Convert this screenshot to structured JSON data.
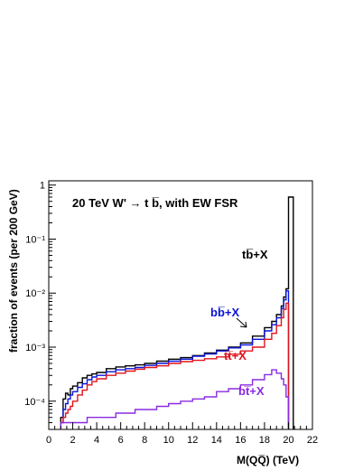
{
  "chart_data": {
    "type": "line",
    "title": "20 TeV W' → t b̅, with EW FSR",
    "xlabel": "M(QQ̅)  (TeV)",
    "ylabel": "fraction of events (per 200 GeV)",
    "xlim": [
      0,
      22
    ],
    "ylim": [
      3e-05,
      1.2
    ],
    "yscale": "log",
    "x_ticks": [
      "0",
      "2",
      "4",
      "6",
      "8",
      "10",
      "12",
      "14",
      "16",
      "18",
      "20",
      "22"
    ],
    "y_ticks": [
      "10⁻⁴",
      "10⁻³",
      "10⁻²",
      "10⁻¹",
      "1"
    ],
    "grid": false,
    "series": [
      {
        "name": "tb̅+X",
        "color": "#000000",
        "x": [
          1.0,
          1.2,
          1.4,
          1.6,
          1.8,
          2.0,
          2.4,
          2.8,
          3.2,
          3.6,
          4.0,
          4.8,
          5.6,
          6.4,
          7.2,
          8.0,
          9.0,
          10.0,
          11.0,
          12.0,
          13.0,
          14.0,
          15.0,
          16.0,
          17.0,
          18.0,
          18.6,
          19.0,
          19.4,
          19.6,
          19.8,
          20.0,
          20.2
        ],
        "y": [
          5e-05,
          0.00011,
          0.00014,
          0.00013,
          0.00017,
          0.00019,
          0.00022,
          0.00027,
          0.0003,
          0.00032,
          0.00034,
          0.0004,
          0.00043,
          0.00045,
          0.00047,
          0.0005,
          0.00055,
          0.0006,
          0.00064,
          0.0007,
          0.00078,
          0.00088,
          0.001,
          0.0012,
          0.0016,
          0.0023,
          0.003,
          0.004,
          0.0058,
          0.0085,
          0.012,
          0.6,
          0.6
        ]
      },
      {
        "name": "bb̅+X",
        "color": "#0a14d8",
        "x": [
          1.0,
          1.2,
          1.4,
          1.6,
          1.8,
          2.0,
          2.4,
          2.8,
          3.2,
          3.6,
          4.0,
          4.8,
          5.6,
          6.4,
          7.2,
          8.0,
          9.0,
          10.0,
          11.0,
          12.0,
          13.0,
          14.0,
          15.0,
          16.0,
          17.0,
          18.0,
          18.6,
          19.0,
          19.4,
          19.6,
          19.8
        ],
        "y": [
          4e-05,
          7e-05,
          9e-05,
          0.00011,
          0.00013,
          0.00015,
          0.00018,
          0.00021,
          0.00025,
          0.00028,
          0.0003,
          0.00035,
          0.00038,
          0.0004,
          0.00042,
          0.00046,
          0.0005,
          0.00055,
          0.0006,
          0.00068,
          0.00075,
          0.00085,
          0.00097,
          0.0011,
          0.0014,
          0.002,
          0.0026,
          0.0035,
          0.0052,
          0.0075,
          0.011
        ]
      },
      {
        "name": "tt̅+X",
        "color": "#e0141e",
        "x": [
          1.0,
          1.2,
          1.4,
          1.6,
          1.8,
          2.0,
          2.4,
          2.8,
          3.2,
          3.6,
          4.0,
          4.8,
          5.6,
          6.4,
          7.2,
          8.0,
          9.0,
          10.0,
          11.0,
          12.0,
          13.0,
          14.0,
          15.0,
          16.0,
          17.0,
          18.0,
          18.6,
          19.0,
          19.4,
          19.6,
          19.8
        ],
        "y": [
          4e-05,
          5e-05,
          6e-05,
          7e-05,
          8e-05,
          0.0001,
          0.00013,
          0.00016,
          0.0002,
          0.00023,
          0.00026,
          0.0003,
          0.00033,
          0.00036,
          0.00039,
          0.00042,
          0.00045,
          0.0005,
          0.00054,
          0.00057,
          0.00061,
          0.00066,
          0.00074,
          0.00085,
          0.001,
          0.0014,
          0.0018,
          0.0025,
          0.0035,
          0.005,
          0.0065
        ]
      },
      {
        "name": "bt̅+X",
        "color": "#8a2be2",
        "x": [
          1.0,
          1.2,
          1.4,
          1.6,
          1.8,
          2.0,
          2.4,
          2.8,
          3.2,
          3.6,
          4.0,
          4.8,
          5.6,
          6.4,
          7.2,
          8.0,
          9.0,
          10.0,
          11.0,
          12.0,
          13.0,
          14.0,
          15.0,
          16.0,
          17.0,
          18.0,
          18.6,
          19.0,
          19.4,
          19.6,
          19.8
        ],
        "y": [
          4e-05,
          4e-05,
          4e-05,
          4e-05,
          4e-05,
          4e-05,
          4e-05,
          4e-05,
          5e-05,
          5e-05,
          5e-05,
          5e-05,
          6e-05,
          6e-05,
          7e-05,
          7e-05,
          8e-05,
          9e-05,
          0.0001,
          0.00011,
          0.00012,
          0.00015,
          0.00017,
          0.0002,
          0.00025,
          0.00031,
          0.00038,
          0.00033,
          0.00026,
          0.0002,
          0.00012
        ]
      }
    ]
  }
}
